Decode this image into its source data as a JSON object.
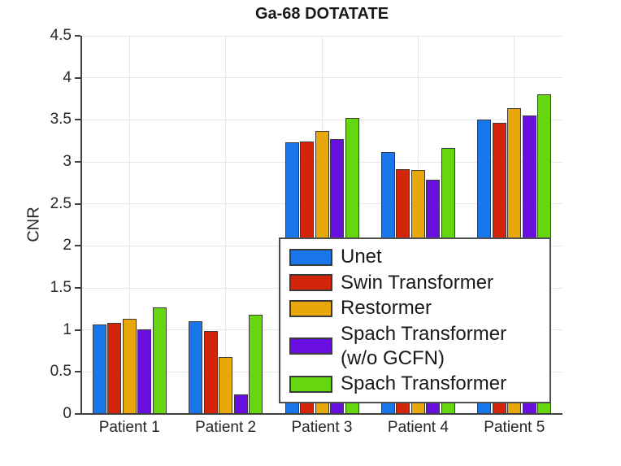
{
  "title": "Ga-68 DOTATATE",
  "ylabel": "CNR",
  "chart_data": {
    "type": "bar",
    "title": "Ga-68 DOTATATE",
    "xlabel": "",
    "ylabel": "CNR",
    "categories": [
      "Patient 1",
      "Patient 2",
      "Patient 3",
      "Patient 4",
      "Patient 5"
    ],
    "series": [
      {
        "name": "Unet",
        "color": "#1976EB",
        "values": [
          1.06,
          1.1,
          3.23,
          3.12,
          3.5
        ]
      },
      {
        "name": "Swin Transformer",
        "color": "#D32509",
        "values": [
          1.08,
          0.99,
          3.24,
          2.91,
          3.46
        ]
      },
      {
        "name": "Restormer",
        "color": "#E8A70A",
        "values": [
          1.13,
          0.68,
          3.37,
          2.9,
          3.64
        ]
      },
      {
        "name": "Spach Transformer",
        "name_line2": "(w/o GCFN)",
        "color": "#6910E0",
        "values": [
          1.01,
          0.23,
          3.27,
          2.79,
          3.55
        ]
      },
      {
        "name": "Spach Transformer",
        "color": "#66D60E",
        "values": [
          1.27,
          1.18,
          3.52,
          3.16,
          3.8
        ]
      }
    ],
    "ylim": [
      0,
      4.5
    ],
    "ytick_step": 0.5,
    "ytick_labels": [
      "0",
      "0.5",
      "1",
      "1.5",
      "2",
      "2.5",
      "3",
      "3.5",
      "4",
      "4.5"
    ],
    "grid": true,
    "legend_position": "inside-lower-right",
    "bar_edge_color": "#3a3a3a"
  }
}
